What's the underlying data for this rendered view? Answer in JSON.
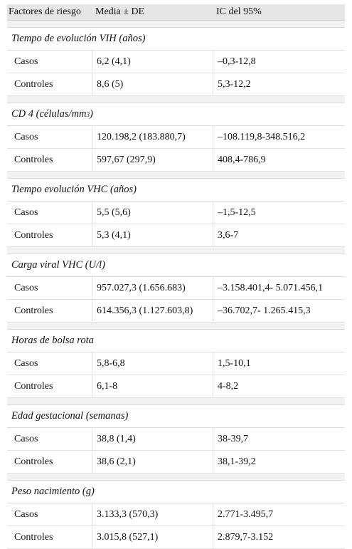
{
  "header": {
    "col1": "Factores de riesgo",
    "col2": "Media ± DE",
    "col3": "IC del 95%"
  },
  "groups": [
    {
      "title": "Tiempo de evolución VIH (años)",
      "rows": [
        {
          "label": "Casos",
          "mean": "6,2 (4,1)",
          "ci": "–0,3-12,8"
        },
        {
          "label": "Controles",
          "mean": "8,6 (5)",
          "ci": "5,3-12,2"
        }
      ]
    },
    {
      "title": "CD 4 (células/mm",
      "title_sup": "3",
      "title_end": ")",
      "rows": [
        {
          "label": "Casos",
          "mean": "120.198,2 (183.880,7)",
          "ci": "–108.119,8-348.516,2"
        },
        {
          "label": "Controles",
          "mean": "597,67 (297,9)",
          "ci": "408,4-786,9"
        }
      ]
    },
    {
      "title": "Tiempo evolución VHC (años)",
      "rows": [
        {
          "label": "Casos",
          "mean": "5,5 (5,6)",
          "ci": "–1,5-12,5"
        },
        {
          "label": "Controles",
          "mean": "5,3 (4,1)",
          "ci": "3,6-7"
        }
      ]
    },
    {
      "title": "Carga viral VHC (U/l)",
      "rows": [
        {
          "label": "Casos",
          "mean": "957.027,3 (1.656.683)",
          "ci": "–3.158.401,4- 5.071.456,1"
        },
        {
          "label": "Controles",
          "mean": "614.356,3 (1.127.603,8)",
          "ci": "–36.702,7- 1.265.415,3"
        }
      ]
    },
    {
      "title": "Horas de bolsa rota",
      "rows": [
        {
          "label": "Casos",
          "mean": "5,8-6,8",
          "ci": "1,5-10,1"
        },
        {
          "label": "Controles",
          "mean": "6,1-8",
          "ci": "4-8,2"
        }
      ]
    },
    {
      "title": "Edad gestacional (semanas)",
      "rows": [
        {
          "label": "Casos",
          "mean": "38,8 (1,4)",
          "ci": "38-39,7"
        },
        {
          "label": "Controles",
          "mean": "38,6 (2,1)",
          "ci": "38,1-39,2"
        }
      ]
    },
    {
      "title": "Peso nacimiento (g)",
      "rows": [
        {
          "label": "Casos",
          "mean": "3.133,3 (570,3)",
          "ci": "2.771-3.495,7"
        },
        {
          "label": "Controles",
          "mean": "3.015,8 (527,1)",
          "ci": "2.879,7-3.152"
        }
      ]
    }
  ]
}
